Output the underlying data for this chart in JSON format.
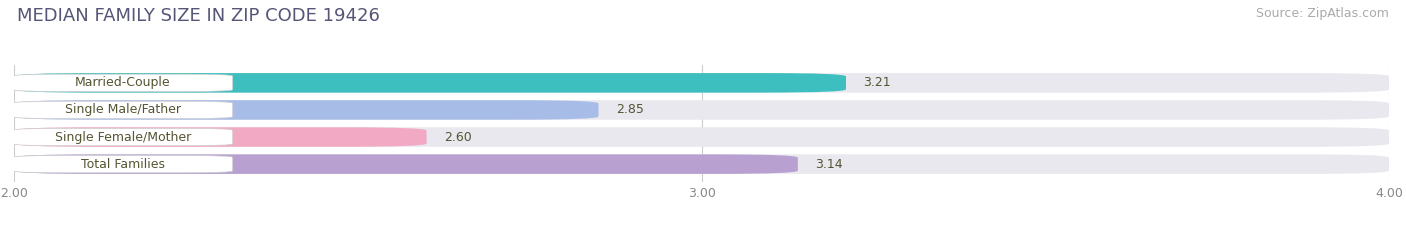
{
  "title": "MEDIAN FAMILY SIZE IN ZIP CODE 19426",
  "source": "Source: ZipAtlas.com",
  "categories": [
    "Married-Couple",
    "Single Male/Father",
    "Single Female/Mother",
    "Total Families"
  ],
  "values": [
    3.21,
    2.85,
    2.6,
    3.14
  ],
  "bar_colors": [
    "#3dbfbf",
    "#a8bce8",
    "#f2aac4",
    "#b8a0d0"
  ],
  "track_color": "#e8e8ee",
  "xlim_min": 2.0,
  "xlim_max": 4.0,
  "xticks": [
    2.0,
    3.0,
    4.0
  ],
  "xtick_labels": [
    "2.00",
    "3.00",
    "4.00"
  ],
  "bar_height": 0.72,
  "background_color": "#ffffff",
  "plot_bg_color": "#ffffff",
  "title_fontsize": 13,
  "source_fontsize": 9,
  "label_fontsize": 9,
  "value_fontsize": 9,
  "tick_fontsize": 9,
  "label_color": "#555533",
  "value_color": "#555533"
}
